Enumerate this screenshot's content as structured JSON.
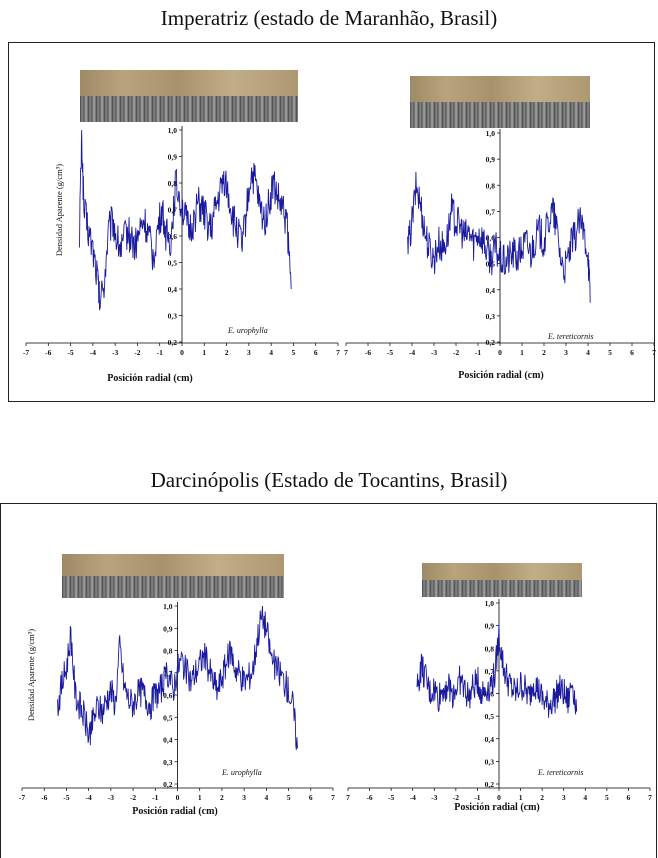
{
  "sections": [
    {
      "title": "Imperatriz (estado de Maranhão, Brasil)"
    },
    {
      "title": "Darcinópolis (Estado de Tocantins, Brasil)"
    }
  ],
  "colors": {
    "line": "#1a1aa0",
    "axis": "#000000",
    "frame": "#222222"
  },
  "chart_data": [
    {
      "type": "line",
      "panel": "Imperatriz - E. urophylla",
      "species": "E. urophylla",
      "xlabel": "Posición radial (cm)",
      "ylabel": "Densidad Aparente (g/cm³)",
      "xlim": [
        -7,
        7
      ],
      "ylim": [
        0.2,
        1.0
      ],
      "xticks": [
        "-7",
        "-6",
        "-5",
        "-4",
        "-3",
        "-2",
        "-1",
        "0",
        "1",
        "2",
        "3",
        "4",
        "5",
        "6",
        "7"
      ],
      "yticks": [
        "0,2",
        "0,3",
        "0,4",
        "0,5",
        "0,6",
        "0,7",
        "0,8",
        "0,9",
        "1,0"
      ],
      "x": [
        -4.6,
        -4.5,
        -4.4,
        -4.2,
        -4.0,
        -3.8,
        -3.7,
        -3.5,
        -3.3,
        -3.1,
        -2.9,
        -2.7,
        -2.5,
        -2.3,
        -2.1,
        -1.9,
        -1.7,
        -1.5,
        -1.3,
        -1.1,
        -0.9,
        -0.7,
        -0.5,
        -0.3,
        -0.1,
        0.1,
        0.3,
        0.5,
        0.7,
        0.9,
        1.1,
        1.3,
        1.5,
        1.7,
        1.9,
        2.1,
        2.3,
        2.5,
        2.7,
        2.9,
        3.1,
        3.3,
        3.5,
        3.7,
        3.9,
        4.1,
        4.3,
        4.5,
        4.7,
        4.9
      ],
      "y": [
        0.62,
        0.98,
        0.7,
        0.62,
        0.55,
        0.45,
        0.35,
        0.42,
        0.62,
        0.66,
        0.58,
        0.55,
        0.62,
        0.6,
        0.56,
        0.62,
        0.66,
        0.6,
        0.52,
        0.62,
        0.7,
        0.6,
        0.58,
        0.8,
        0.75,
        0.68,
        0.62,
        0.65,
        0.72,
        0.7,
        0.66,
        0.62,
        0.7,
        0.76,
        0.82,
        0.75,
        0.66,
        0.62,
        0.56,
        0.7,
        0.84,
        0.8,
        0.7,
        0.66,
        0.72,
        0.8,
        0.74,
        0.7,
        0.66,
        0.4
      ]
    },
    {
      "type": "line",
      "panel": "Imperatriz - E. tereticornis",
      "species": "E. tereticornis",
      "xlabel": "Posición radial (cm)",
      "xlim": [
        -7,
        7
      ],
      "ylim": [
        0.2,
        1.0
      ],
      "xticks": [
        "7",
        "-6",
        "-5",
        "-4",
        "-3",
        "-2",
        "-1",
        "0",
        "1",
        "2",
        "3",
        "4",
        "5",
        "6",
        "7"
      ],
      "yticks": [
        "0,2",
        "0,3",
        "0,4",
        "0,5",
        "0,6",
        "0,7",
        "0,8",
        "0,9",
        "1,0"
      ],
      "x": [
        -4.2,
        -4.0,
        -3.8,
        -3.6,
        -3.4,
        -3.2,
        -3.0,
        -2.8,
        -2.6,
        -2.4,
        -2.2,
        -2.0,
        -1.8,
        -1.6,
        -1.4,
        -1.2,
        -1.0,
        -0.8,
        -0.6,
        -0.4,
        -0.2,
        0.0,
        0.2,
        0.4,
        0.6,
        0.8,
        1.0,
        1.2,
        1.4,
        1.6,
        1.8,
        2.0,
        2.2,
        2.4,
        2.6,
        2.8,
        3.0,
        3.2,
        3.4,
        3.6,
        3.8,
        4.0,
        4.1
      ],
      "y": [
        0.55,
        0.66,
        0.8,
        0.72,
        0.62,
        0.55,
        0.52,
        0.58,
        0.56,
        0.6,
        0.7,
        0.66,
        0.64,
        0.6,
        0.62,
        0.58,
        0.62,
        0.6,
        0.55,
        0.52,
        0.56,
        0.52,
        0.5,
        0.52,
        0.54,
        0.52,
        0.56,
        0.58,
        0.54,
        0.6,
        0.62,
        0.58,
        0.66,
        0.7,
        0.62,
        0.5,
        0.48,
        0.56,
        0.6,
        0.66,
        0.62,
        0.55,
        0.35
      ]
    },
    {
      "type": "line",
      "panel": "Darcinópolis - E. urophylla",
      "species": "E. urophylla",
      "xlabel": "Posición radial (cm)",
      "ylabel": "Densidad Aparente (g/cm³)",
      "xlim": [
        -7,
        7
      ],
      "ylim": [
        0.2,
        1.0
      ],
      "xticks": [
        "-7",
        "-6",
        "-5",
        "-4",
        "-3",
        "-2",
        "-1",
        "0",
        "1",
        "2",
        "3",
        "4",
        "5",
        "6",
        "7"
      ],
      "yticks": [
        "0,2",
        "0,3",
        "0,4",
        "0,5",
        "0,6",
        "0,7",
        "0,8",
        "0,9",
        "1,0"
      ],
      "x": [
        -5.4,
        -5.2,
        -5.0,
        -4.8,
        -4.6,
        -4.4,
        -4.2,
        -4.0,
        -3.8,
        -3.6,
        -3.4,
        -3.2,
        -3.0,
        -2.8,
        -2.6,
        -2.4,
        -2.2,
        -2.0,
        -1.8,
        -1.6,
        -1.4,
        -1.2,
        -1.0,
        -0.8,
        -0.6,
        -0.4,
        -0.2,
        0.0,
        0.2,
        0.4,
        0.6,
        0.8,
        1.0,
        1.2,
        1.4,
        1.6,
        1.8,
        2.0,
        2.2,
        2.4,
        2.6,
        2.8,
        3.0,
        3.2,
        3.4,
        3.6,
        3.8,
        4.0,
        4.2,
        4.4,
        4.6,
        4.8,
        5.0,
        5.2,
        5.4
      ],
      "y": [
        0.55,
        0.65,
        0.72,
        0.88,
        0.6,
        0.55,
        0.5,
        0.42,
        0.48,
        0.55,
        0.52,
        0.58,
        0.62,
        0.56,
        0.82,
        0.64,
        0.58,
        0.56,
        0.6,
        0.62,
        0.58,
        0.56,
        0.6,
        0.62,
        0.66,
        0.7,
        0.62,
        0.72,
        0.76,
        0.7,
        0.66,
        0.7,
        0.74,
        0.78,
        0.72,
        0.66,
        0.62,
        0.68,
        0.74,
        0.8,
        0.72,
        0.7,
        0.66,
        0.68,
        0.72,
        0.86,
        0.96,
        0.9,
        0.78,
        0.72,
        0.7,
        0.66,
        0.62,
        0.55,
        0.36
      ]
    },
    {
      "type": "line",
      "panel": "Darcinópolis - E. tereticornis",
      "species": "E. tereticornis",
      "xlabel": "Posición radial (cm)",
      "xlim": [
        -7,
        7
      ],
      "ylim": [
        0.2,
        1.0
      ],
      "xticks": [
        "7",
        "-6",
        "-5",
        "-4",
        "-3",
        "-2",
        "-1",
        "0",
        "1",
        "2",
        "3",
        "4",
        "5",
        "6",
        "7"
      ],
      "yticks": [
        "0,2",
        "0,3",
        "0,4",
        "0,5",
        "0,6",
        "0,7",
        "0,8",
        "0,9",
        "1,0"
      ],
      "x": [
        -3.8,
        -3.6,
        -3.4,
        -3.2,
        -3.0,
        -2.8,
        -2.6,
        -2.4,
        -2.2,
        -2.0,
        -1.8,
        -1.6,
        -1.4,
        -1.2,
        -1.0,
        -0.8,
        -0.6,
        -0.4,
        -0.2,
        0.0,
        0.2,
        0.4,
        0.6,
        0.8,
        1.0,
        1.2,
        1.4,
        1.6,
        1.8,
        2.0,
        2.2,
        2.4,
        2.6,
        2.8,
        3.0,
        3.2,
        3.4,
        3.6
      ],
      "y": [
        0.62,
        0.72,
        0.66,
        0.6,
        0.62,
        0.58,
        0.62,
        0.64,
        0.6,
        0.62,
        0.66,
        0.62,
        0.58,
        0.62,
        0.66,
        0.6,
        0.62,
        0.64,
        0.68,
        0.86,
        0.72,
        0.66,
        0.62,
        0.6,
        0.64,
        0.62,
        0.58,
        0.66,
        0.62,
        0.58,
        0.55,
        0.56,
        0.58,
        0.62,
        0.6,
        0.56,
        0.66,
        0.52
      ]
    }
  ]
}
